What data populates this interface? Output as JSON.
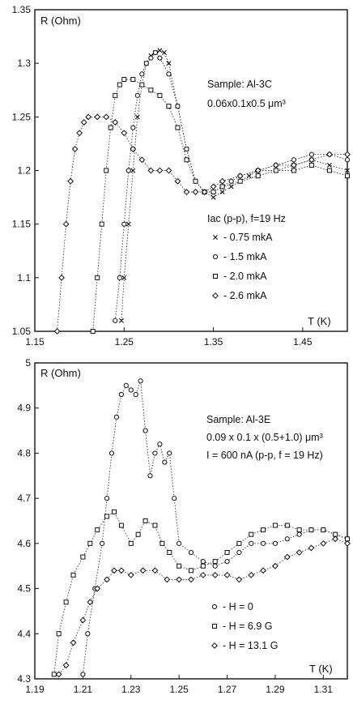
{
  "chart_data": [
    {
      "type": "scatter",
      "ylabel": "R (Ohm)",
      "xlabel": "T (K)",
      "xlim": [
        1.15,
        1.5
      ],
      "ylim": [
        1.05,
        1.35
      ],
      "xticks": [
        "1.15",
        "1.25",
        "1.35",
        "1.45"
      ],
      "yticks": [
        "1.05",
        "1.1",
        "1.15",
        "1.2",
        "1.25",
        "1.3",
        "1.35"
      ],
      "grid": false,
      "annotations": {
        "sample": "Sample: Al-3C",
        "dims": "0.06x0.1x0.5 μm³",
        "legend_title": "Iac (p-p), f=19 Hz"
      },
      "series": [
        {
          "name": "- 0.75 mkA",
          "marker": "x",
          "x": [
            1.247,
            1.25,
            1.255,
            1.26,
            1.265,
            1.27,
            1.275,
            1.28,
            1.285,
            1.29,
            1.295,
            1.3,
            1.31,
            1.32,
            1.33,
            1.34,
            1.35,
            1.36,
            1.37,
            1.38,
            1.39,
            1.4,
            1.42,
            1.44,
            1.46,
            1.48,
            1.5
          ],
          "y": [
            1.06,
            1.1,
            1.15,
            1.2,
            1.25,
            1.28,
            1.3,
            1.307,
            1.31,
            1.312,
            1.31,
            1.3,
            1.26,
            1.22,
            1.19,
            1.18,
            1.175,
            1.18,
            1.185,
            1.19,
            1.195,
            1.2,
            1.2,
            1.205,
            1.21,
            1.205,
            1.2
          ]
        },
        {
          "name": "- 1.5 mkA",
          "marker": "circle",
          "x": [
            1.24,
            1.245,
            1.25,
            1.255,
            1.26,
            1.265,
            1.27,
            1.275,
            1.28,
            1.285,
            1.29,
            1.3,
            1.31,
            1.32,
            1.33,
            1.34,
            1.35,
            1.36,
            1.37,
            1.38,
            1.4,
            1.42,
            1.44,
            1.46,
            1.48,
            1.5
          ],
          "y": [
            1.06,
            1.1,
            1.15,
            1.2,
            1.24,
            1.27,
            1.29,
            1.3,
            1.305,
            1.31,
            1.305,
            1.29,
            1.26,
            1.22,
            1.19,
            1.18,
            1.18,
            1.185,
            1.19,
            1.195,
            1.2,
            1.205,
            1.21,
            1.215,
            1.215,
            1.21
          ]
        },
        {
          "name": "- 2.0 mkA",
          "marker": "square",
          "x": [
            1.215,
            1.22,
            1.225,
            1.23,
            1.235,
            1.24,
            1.245,
            1.25,
            1.26,
            1.27,
            1.28,
            1.29,
            1.3,
            1.31,
            1.32,
            1.33,
            1.34,
            1.35,
            1.36,
            1.38,
            1.4,
            1.42,
            1.44,
            1.46,
            1.48,
            1.5
          ],
          "y": [
            1.05,
            1.1,
            1.15,
            1.2,
            1.24,
            1.27,
            1.28,
            1.285,
            1.285,
            1.28,
            1.275,
            1.27,
            1.26,
            1.24,
            1.21,
            1.19,
            1.18,
            1.18,
            1.185,
            1.19,
            1.195,
            1.2,
            1.2,
            1.205,
            1.2,
            1.195
          ]
        },
        {
          "name": "- 2.6 mkA",
          "marker": "diamond",
          "x": [
            1.175,
            1.18,
            1.185,
            1.19,
            1.195,
            1.2,
            1.205,
            1.21,
            1.22,
            1.23,
            1.24,
            1.25,
            1.26,
            1.27,
            1.28,
            1.29,
            1.3,
            1.31,
            1.32,
            1.33,
            1.34,
            1.35,
            1.36,
            1.38,
            1.4,
            1.42,
            1.44,
            1.46,
            1.48,
            1.5
          ],
          "y": [
            1.05,
            1.1,
            1.15,
            1.19,
            1.22,
            1.235,
            1.245,
            1.25,
            1.25,
            1.25,
            1.245,
            1.235,
            1.22,
            1.21,
            1.2,
            1.2,
            1.2,
            1.19,
            1.18,
            1.18,
            1.18,
            1.185,
            1.19,
            1.195,
            1.2,
            1.205,
            1.205,
            1.21,
            1.215,
            1.215
          ]
        }
      ]
    },
    {
      "type": "scatter",
      "ylabel": "R (Ohm)",
      "xlabel": "T (K)",
      "xlim": [
        1.19,
        1.32
      ],
      "ylim": [
        4.3,
        5.0
      ],
      "xticks": [
        "1.19",
        "1.21",
        "1.23",
        "1.25",
        "1.27",
        "1.29",
        "1.31"
      ],
      "yticks": [
        "4.3",
        "4.4",
        "4.5",
        "4.6",
        "4.7",
        "4.8",
        "4.9",
        "5"
      ],
      "grid": false,
      "annotations": {
        "sample": "Sample: Al-3E",
        "dims": "0.09 x 0.1 x (0.5+1.0) μm³",
        "current": "I = 600 nA (p-p, f = 19 Hz)"
      },
      "series": [
        {
          "name": "- H = 0",
          "marker": "circle",
          "x": [
            1.21,
            1.212,
            1.215,
            1.218,
            1.22,
            1.222,
            1.224,
            1.226,
            1.228,
            1.23,
            1.232,
            1.234,
            1.236,
            1.238,
            1.24,
            1.242,
            1.244,
            1.246,
            1.248,
            1.25,
            1.255,
            1.26,
            1.265,
            1.27,
            1.275,
            1.28,
            1.285,
            1.29,
            1.295,
            1.3,
            1.305,
            1.31,
            1.315,
            1.32
          ],
          "y": [
            4.31,
            4.4,
            4.5,
            4.6,
            4.7,
            4.8,
            4.88,
            4.93,
            4.95,
            4.94,
            4.93,
            4.96,
            4.85,
            4.75,
            4.8,
            4.82,
            4.78,
            4.8,
            4.7,
            4.6,
            4.58,
            4.56,
            4.55,
            4.56,
            4.58,
            4.6,
            4.6,
            4.6,
            4.61,
            4.62,
            4.63,
            4.63,
            4.62,
            4.61
          ]
        },
        {
          "name": "- H = 6.9  G",
          "marker": "square",
          "x": [
            1.198,
            1.2,
            1.203,
            1.206,
            1.21,
            1.213,
            1.216,
            1.22,
            1.223,
            1.226,
            1.23,
            1.233,
            1.236,
            1.24,
            1.243,
            1.246,
            1.25,
            1.255,
            1.26,
            1.265,
            1.27,
            1.275,
            1.28,
            1.285,
            1.29,
            1.295,
            1.3,
            1.305,
            1.31,
            1.315,
            1.32
          ],
          "y": [
            4.31,
            4.4,
            4.47,
            4.53,
            4.57,
            4.6,
            4.63,
            4.66,
            4.67,
            4.64,
            4.6,
            4.62,
            4.65,
            4.64,
            4.6,
            4.58,
            4.55,
            4.54,
            4.55,
            4.56,
            4.58,
            4.6,
            4.62,
            4.63,
            4.64,
            4.64,
            4.63,
            4.63,
            4.63,
            4.62,
            4.61
          ]
        },
        {
          "name": "- H = 13.1  G",
          "marker": "diamond",
          "x": [
            1.2,
            1.203,
            1.206,
            1.21,
            1.213,
            1.216,
            1.22,
            1.223,
            1.226,
            1.23,
            1.235,
            1.24,
            1.245,
            1.25,
            1.255,
            1.26,
            1.265,
            1.27,
            1.275,
            1.28,
            1.285,
            1.29,
            1.295,
            1.3,
            1.305,
            1.31,
            1.315,
            1.32
          ],
          "y": [
            4.31,
            4.33,
            4.38,
            4.43,
            4.47,
            4.5,
            4.52,
            4.54,
            4.54,
            4.53,
            4.54,
            4.54,
            4.52,
            4.52,
            4.52,
            4.53,
            4.53,
            4.53,
            4.52,
            4.53,
            4.54,
            4.55,
            4.57,
            4.58,
            4.59,
            4.6,
            4.61,
            4.6
          ]
        }
      ]
    }
  ]
}
